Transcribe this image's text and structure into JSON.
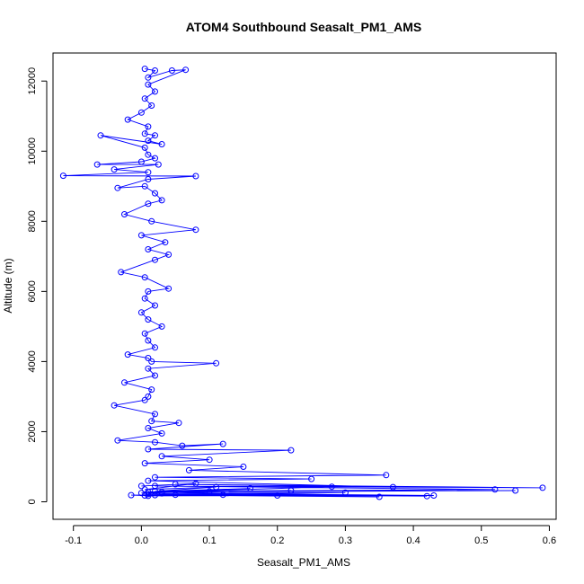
{
  "chart_data": {
    "type": "scatter",
    "title": "ATOM4 Southbound Seasalt_PM1_AMS",
    "xlabel": "Seasalt_PM1_AMS",
    "ylabel": "Altitude (m)",
    "xlim": [
      -0.13,
      0.61
    ],
    "ylim": [
      -500,
      12800
    ],
    "x_ticks": [
      -0.1,
      0.0,
      0.1,
      0.2,
      0.3,
      0.4,
      0.5,
      0.6
    ],
    "x_tick_labels": [
      "-0.1",
      "0.0",
      "0.1",
      "0.2",
      "0.3",
      "0.4",
      "0.5",
      "0.6"
    ],
    "y_ticks": [
      0,
      2000,
      4000,
      6000,
      8000,
      10000,
      12000
    ],
    "y_tick_labels": [
      "0",
      "2000",
      "4000",
      "6000",
      "8000",
      "10000",
      "12000"
    ],
    "markers": "open circles connected by lines",
    "grid": false,
    "legend": "none",
    "series": [
      {
        "color": "#0000ff",
        "x": [
          0.005,
          0.02,
          0.01,
          0.045,
          0.065,
          0.01,
          0.02,
          0.005,
          0.015,
          0.0,
          -0.02,
          0.01,
          0.005,
          0.02,
          0.01,
          0.03,
          -0.06,
          0.005,
          0.01,
          0.02,
          0.0,
          -0.065,
          0.025,
          -0.04,
          0.01,
          -0.115,
          0.08,
          0.01,
          -0.035,
          0.005,
          0.02,
          0.03,
          0.01,
          -0.025,
          0.015,
          0.08,
          0.0,
          0.035,
          0.01,
          0.04,
          0.02,
          -0.03,
          0.005,
          0.04,
          0.01,
          0.005,
          0.02,
          0.0,
          0.01,
          0.03,
          0.005,
          0.01,
          0.02,
          -0.02,
          0.01,
          0.015,
          0.11,
          0.01,
          0.02,
          -0.025,
          0.015,
          0.01,
          0.005,
          -0.04,
          0.02,
          0.015,
          0.055,
          0.01,
          0.03,
          -0.035,
          0.02,
          0.06,
          0.12,
          0.01,
          0.22,
          0.03,
          0.1,
          0.005,
          0.15,
          0.07,
          0.36,
          0.02,
          0.25,
          0.01,
          0.37,
          0.05,
          0.59,
          0.02,
          0.52,
          0.1,
          0.55,
          0.03,
          0.28,
          0.0,
          0.43,
          0.01,
          0.42,
          0.05,
          0.35,
          0.02,
          0.2,
          0.01,
          0.12,
          -0.015,
          0.005,
          0.3,
          0.03,
          0.22,
          0.01,
          0.16,
          0.02,
          0.11,
          0.005,
          0.08,
          0.0
        ],
        "y": [
          12350,
          12300,
          12100,
          12300,
          12320,
          11900,
          11700,
          11500,
          11300,
          11100,
          10900,
          10700,
          10500,
          10450,
          10300,
          10200,
          10450,
          10100,
          9900,
          9800,
          9700,
          9620,
          9620,
          9480,
          9400,
          9300,
          9290,
          9200,
          8950,
          9000,
          8800,
          8600,
          8500,
          8200,
          8000,
          7760,
          7600,
          7400,
          7200,
          7050,
          6900,
          6550,
          6400,
          6080,
          6000,
          5800,
          5600,
          5400,
          5200,
          5000,
          4800,
          4600,
          4400,
          4200,
          4100,
          4000,
          3950,
          3800,
          3600,
          3400,
          3200,
          3000,
          2900,
          2750,
          2500,
          2300,
          2250,
          2100,
          1950,
          1750,
          1700,
          1600,
          1650,
          1500,
          1470,
          1300,
          1200,
          1100,
          1000,
          900,
          760,
          700,
          650,
          600,
          420,
          500,
          400,
          450,
          350,
          300,
          320,
          280,
          430,
          250,
          180,
          220,
          160,
          200,
          140,
          190,
          180,
          170,
          200,
          190,
          180,
          260,
          240,
          320,
          280,
          380,
          300,
          420,
          350,
          520,
          450
        ]
      }
    ]
  }
}
